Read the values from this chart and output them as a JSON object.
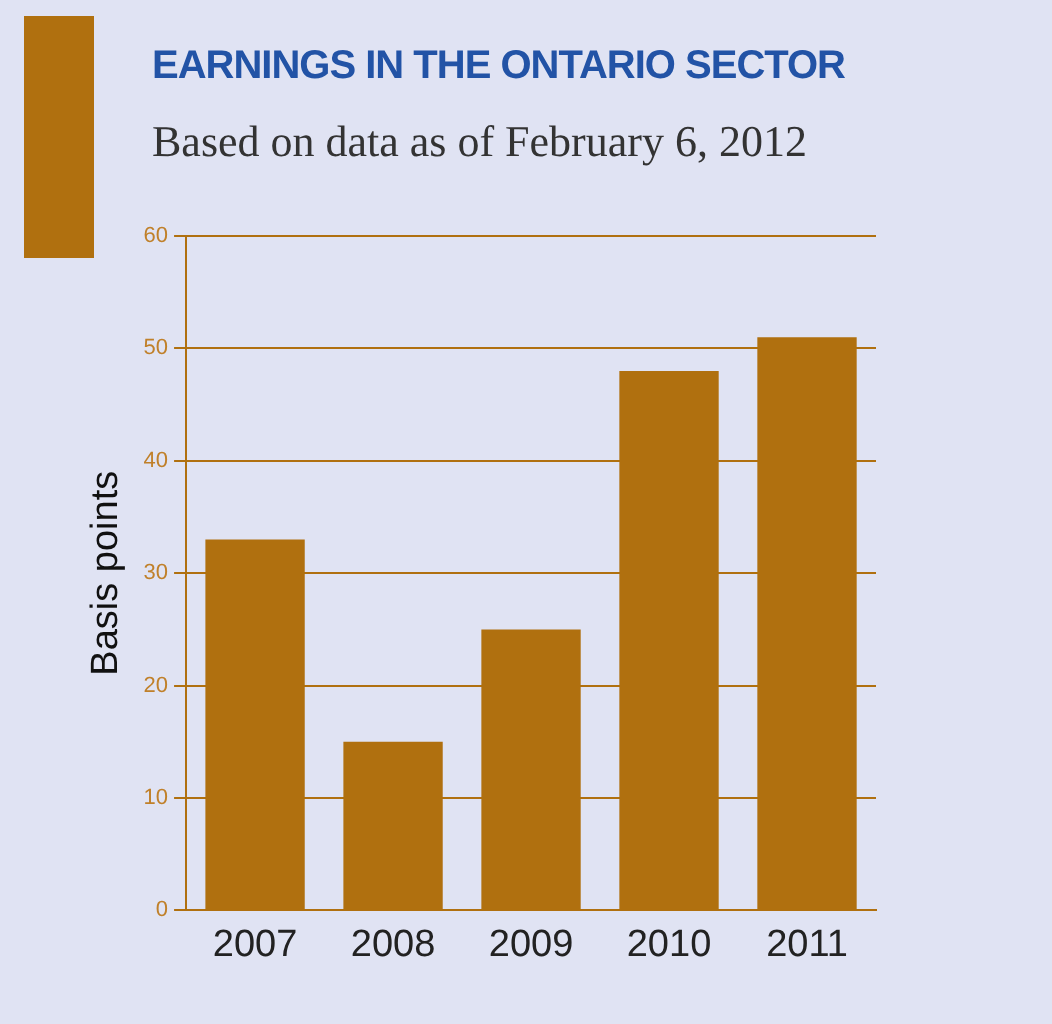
{
  "chart_data": {
    "type": "bar",
    "title": "EARNINGS IN THE ONTARIO SECTOR",
    "subtitle": "Based on data as of February 6, 2012",
    "ylabel": "Basis points",
    "categories": [
      "2007",
      "2008",
      "2009",
      "2010",
      "2011"
    ],
    "values": [
      33,
      15,
      25,
      48,
      51
    ],
    "color": "#b0700f",
    "ylim": [
      0,
      60
    ],
    "yticks": [
      0,
      10,
      20,
      30,
      40,
      50,
      60
    ],
    "grid": "y",
    "legend": false
  }
}
